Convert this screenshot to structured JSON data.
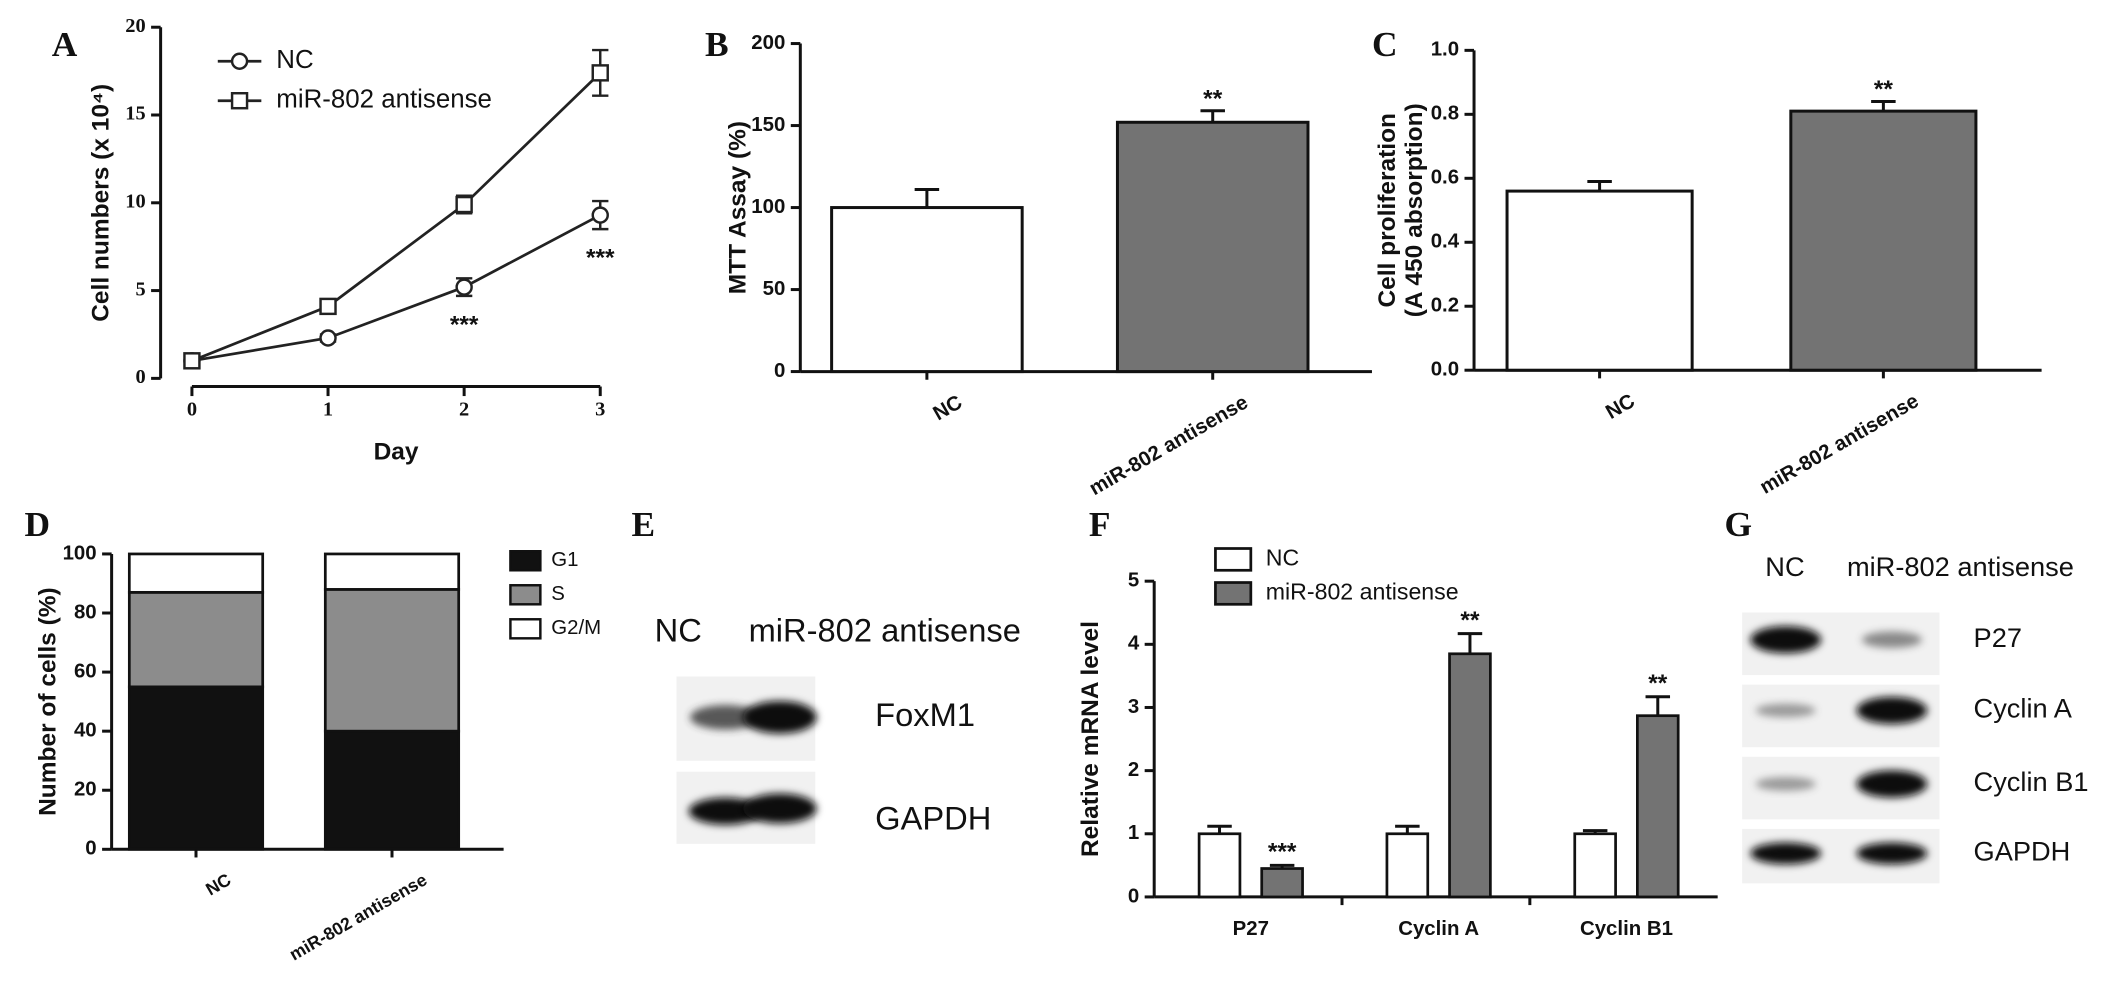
{
  "chart_data": [
    {
      "type": "line",
      "label": "A",
      "xlabel": "Day",
      "ylabel": "Cell numbers (x 10⁴)",
      "x": [
        0,
        1,
        2,
        3
      ],
      "xlim": [
        0,
        3
      ],
      "xticks": [
        0,
        1,
        2,
        3
      ],
      "ylim": [
        0,
        20
      ],
      "yticks": [
        0,
        5,
        10,
        15,
        20
      ],
      "legend": "upper left",
      "series": [
        {
          "name": "NC",
          "marker": "circle",
          "color": "#222222",
          "values": [
            1,
            2.3,
            5.2,
            9.3
          ],
          "errors": [
            0.1,
            0.2,
            0.5,
            0.8
          ],
          "annotations": [
            null,
            null,
            "***",
            "***"
          ]
        },
        {
          "name": "miR-802 antisense",
          "marker": "square",
          "color": "#222222",
          "values": [
            1,
            4.1,
            9.9,
            17.4
          ],
          "errors": [
            0.1,
            0.2,
            0.5,
            1.3
          ],
          "annotations": [
            null,
            null,
            null,
            null
          ]
        }
      ]
    },
    {
      "type": "bar",
      "label": "B",
      "ylabel": [
        "MTT Assay (%)"
      ],
      "categories": [
        "NC",
        "miR-802 antisense"
      ],
      "values": [
        100,
        152
      ],
      "errors": [
        11,
        7
      ],
      "colors": [
        "#ffffff",
        "#737373"
      ],
      "annotations": [
        null,
        "**"
      ],
      "ylim": [
        0,
        200
      ],
      "yticks": [
        0,
        50,
        100,
        150,
        200
      ]
    },
    {
      "type": "bar",
      "label": "C",
      "ylabel": [
        "Cell proliferation",
        "(A 450 absorption)"
      ],
      "categories": [
        "NC",
        "miR-802 antisense"
      ],
      "values": [
        0.56,
        0.81
      ],
      "errors": [
        0.03,
        0.03
      ],
      "colors": [
        "#ffffff",
        "#737373"
      ],
      "annotations": [
        null,
        "**"
      ],
      "ylim": [
        0,
        1
      ],
      "yticks": [
        {
          "value": 0,
          "label": "0.0"
        },
        0.2,
        0.4,
        0.6,
        0.8,
        {
          "value": 1,
          "label": "1.0"
        }
      ]
    },
    {
      "type": "stacked_bar",
      "label": "D",
      "ylabel": [
        "Number of cells (%)"
      ],
      "categories": [
        "NC",
        "miR-802 antisense"
      ],
      "legend": "right",
      "series": [
        {
          "name": "G1",
          "color": "#111111",
          "values": [
            55,
            40
          ]
        },
        {
          "name": "S",
          "color": "#8c8c8c",
          "values": [
            32,
            48
          ]
        },
        {
          "name": "G2/M",
          "color": "#ffffff",
          "values": [
            13,
            12
          ]
        }
      ],
      "ylim": [
        0,
        100
      ],
      "yticks": [
        0,
        20,
        40,
        60,
        80,
        100
      ]
    },
    {
      "type": "grouped_bar",
      "label": "F",
      "ylabel": [
        "Relative  mRNA level"
      ],
      "categories": [
        "P27",
        "Cyclin A",
        "Cyclin B1"
      ],
      "legend": "upper left",
      "series": [
        {
          "name": "NC",
          "color": "#ffffff",
          "values": [
            1,
            1,
            1
          ],
          "errors": [
            0.12,
            0.12,
            0.05
          ],
          "annotations": [
            null,
            null,
            null
          ]
        },
        {
          "name": "miR-802 antisense",
          "color": "#737373",
          "values": [
            0.45,
            3.85,
            2.87
          ],
          "errors": [
            0.05,
            0.32,
            0.3
          ],
          "annotations": [
            "***",
            "**",
            "**"
          ]
        }
      ],
      "ylim": [
        0,
        5
      ],
      "yticks": [
        0,
        1,
        2,
        3,
        4,
        5
      ]
    }
  ],
  "blots": [
    {
      "label": "E",
      "lanes": [
        "NC",
        "miR-802 antisense"
      ],
      "proteins": [
        "FoxM1",
        "GAPDH"
      ]
    },
    {
      "label": "G",
      "lanes": [
        "NC",
        "miR-802 antisense"
      ],
      "proteins": [
        "P27",
        "Cyclin A",
        "Cyclin B1",
        "GAPDH"
      ]
    }
  ]
}
